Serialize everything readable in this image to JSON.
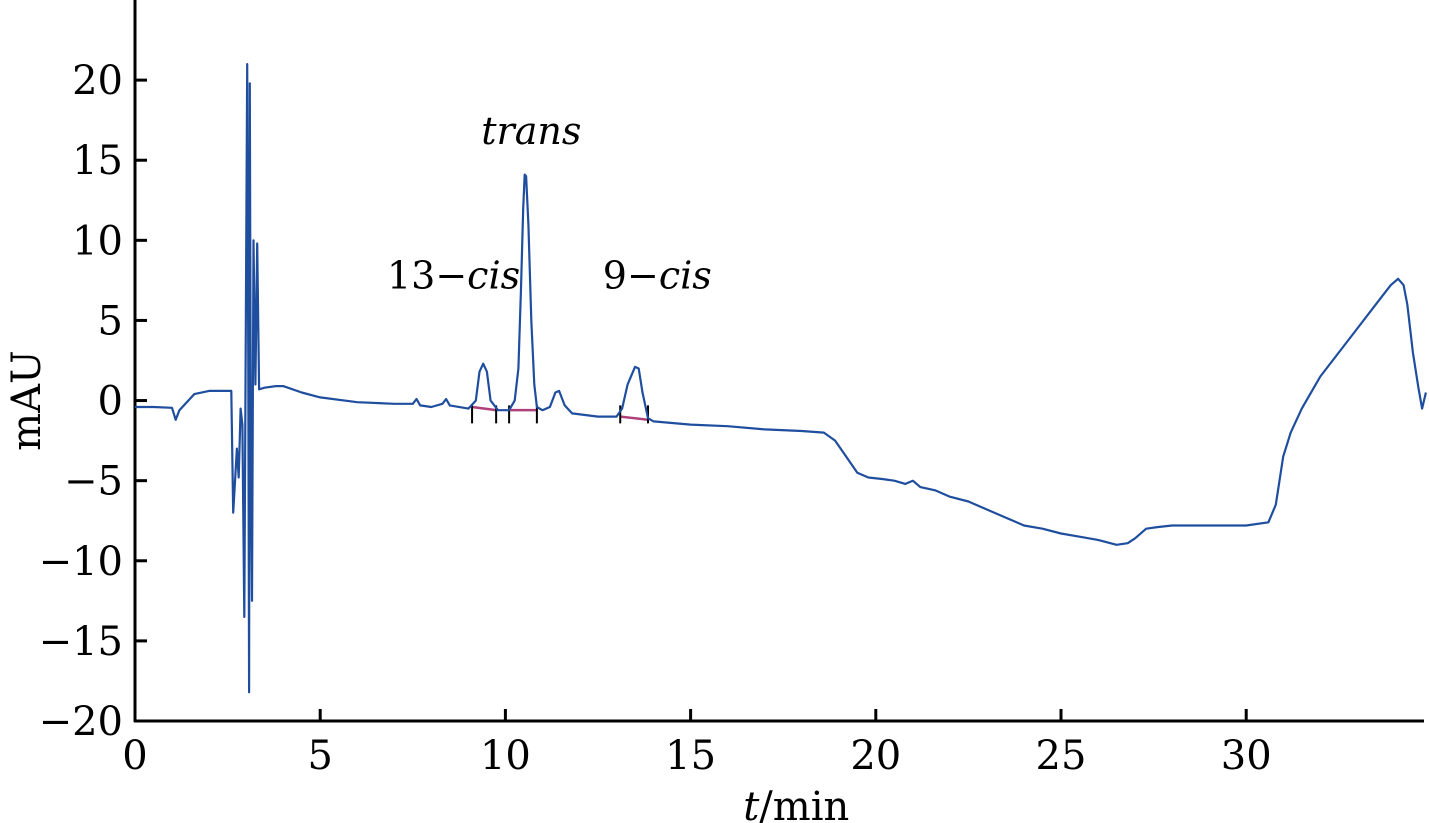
{
  "chart_data": {
    "type": "line",
    "title": "",
    "xlabel_italic": "t",
    "xlabel_rest": "/min",
    "ylabel": "mAU",
    "xlim": [
      0,
      34.8
    ],
    "ylim": [
      -20,
      25
    ],
    "xticks": [
      0,
      5,
      10,
      15,
      20,
      25,
      30
    ],
    "xtick_labels": [
      "0",
      "5",
      "10",
      "15",
      "20",
      "25",
      "30"
    ],
    "yticks": [
      -20,
      -15,
      -10,
      -5,
      0,
      5,
      10,
      15,
      20
    ],
    "ytick_labels": [
      "−20",
      "−15",
      "−10",
      "−5",
      "0",
      "5",
      "10",
      "15",
      "20"
    ],
    "grid": false,
    "line_color": "#1f4e9e",
    "baseline_color": "#b0407a",
    "series": [
      {
        "points": [
          [
            0,
            -0.4
          ],
          [
            0.5,
            -0.4
          ],
          [
            1.0,
            -0.45
          ],
          [
            1.1,
            -1.2
          ],
          [
            1.2,
            -0.6
          ],
          [
            1.6,
            0.4
          ],
          [
            2.0,
            0.6
          ],
          [
            2.6,
            0.6
          ],
          [
            2.65,
            -7.0
          ],
          [
            2.75,
            -3.0
          ],
          [
            2.8,
            -4.8
          ],
          [
            2.85,
            -0.5
          ],
          [
            2.9,
            -1.5
          ],
          [
            2.95,
            -13.5
          ],
          [
            3.0,
            8.0
          ],
          [
            3.03,
            21.0
          ],
          [
            3.06,
            2.0
          ],
          [
            3.08,
            -18.2
          ],
          [
            3.1,
            19.8
          ],
          [
            3.13,
            -5.0
          ],
          [
            3.16,
            -12.5
          ],
          [
            3.2,
            10.0
          ],
          [
            3.25,
            1.0
          ],
          [
            3.3,
            9.8
          ],
          [
            3.35,
            0.7
          ],
          [
            3.5,
            0.8
          ],
          [
            3.8,
            0.9
          ],
          [
            4.0,
            0.9
          ],
          [
            4.5,
            0.5
          ],
          [
            5.0,
            0.2
          ],
          [
            6.0,
            -0.1
          ],
          [
            7.0,
            -0.2
          ],
          [
            7.5,
            -0.2
          ],
          [
            7.6,
            0.1
          ],
          [
            7.7,
            -0.3
          ],
          [
            8.0,
            -0.4
          ],
          [
            8.3,
            -0.2
          ],
          [
            8.4,
            0.1
          ],
          [
            8.5,
            -0.3
          ],
          [
            9.0,
            -0.5
          ],
          [
            9.2,
            0.0
          ],
          [
            9.3,
            1.8
          ],
          [
            9.4,
            2.3
          ],
          [
            9.5,
            1.8
          ],
          [
            9.6,
            0.0
          ],
          [
            9.8,
            -0.6
          ],
          [
            10.1,
            -0.6
          ],
          [
            10.25,
            0.0
          ],
          [
            10.35,
            2.0
          ],
          [
            10.42,
            7.0
          ],
          [
            10.48,
            12.0
          ],
          [
            10.52,
            14.1
          ],
          [
            10.56,
            14.0
          ],
          [
            10.62,
            11.0
          ],
          [
            10.7,
            5.0
          ],
          [
            10.78,
            1.0
          ],
          [
            10.85,
            -0.4
          ],
          [
            11.0,
            -0.6
          ],
          [
            11.2,
            -0.4
          ],
          [
            11.35,
            0.5
          ],
          [
            11.45,
            0.6
          ],
          [
            11.6,
            -0.3
          ],
          [
            11.8,
            -0.8
          ],
          [
            12.5,
            -1.0
          ],
          [
            13.0,
            -1.0
          ],
          [
            13.15,
            -0.5
          ],
          [
            13.3,
            1.0
          ],
          [
            13.5,
            2.1
          ],
          [
            13.6,
            2.0
          ],
          [
            13.7,
            0.5
          ],
          [
            13.85,
            -1.1
          ],
          [
            14.0,
            -1.3
          ],
          [
            15.0,
            -1.5
          ],
          [
            16.0,
            -1.6
          ],
          [
            17.0,
            -1.8
          ],
          [
            18.0,
            -1.9
          ],
          [
            18.6,
            -2.0
          ],
          [
            18.9,
            -2.5
          ],
          [
            19.2,
            -3.5
          ],
          [
            19.5,
            -4.5
          ],
          [
            19.8,
            -4.8
          ],
          [
            20.2,
            -4.9
          ],
          [
            20.5,
            -5.0
          ],
          [
            20.8,
            -5.2
          ],
          [
            21.0,
            -5.0
          ],
          [
            21.2,
            -5.4
          ],
          [
            21.6,
            -5.6
          ],
          [
            22.0,
            -6.0
          ],
          [
            22.5,
            -6.3
          ],
          [
            23.0,
            -6.8
          ],
          [
            23.5,
            -7.3
          ],
          [
            24.0,
            -7.8
          ],
          [
            24.5,
            -8.0
          ],
          [
            25.0,
            -8.3
          ],
          [
            25.5,
            -8.5
          ],
          [
            26.0,
            -8.7
          ],
          [
            26.5,
            -9.0
          ],
          [
            26.8,
            -8.9
          ],
          [
            27.0,
            -8.6
          ],
          [
            27.3,
            -8.0
          ],
          [
            27.6,
            -7.9
          ],
          [
            28.0,
            -7.8
          ],
          [
            29.0,
            -7.8
          ],
          [
            30.0,
            -7.8
          ],
          [
            30.6,
            -7.6
          ],
          [
            30.8,
            -6.5
          ],
          [
            31.0,
            -3.5
          ],
          [
            31.2,
            -2.0
          ],
          [
            31.5,
            -0.5
          ],
          [
            32.0,
            1.5
          ],
          [
            32.5,
            3.0
          ],
          [
            33.0,
            4.5
          ],
          [
            33.5,
            6.0
          ],
          [
            33.9,
            7.2
          ],
          [
            34.1,
            7.6
          ],
          [
            34.25,
            7.2
          ],
          [
            34.35,
            6.0
          ],
          [
            34.5,
            3.0
          ],
          [
            34.65,
            0.8
          ],
          [
            34.75,
            -0.5
          ],
          [
            34.85,
            0.5
          ]
        ]
      }
    ],
    "integration_baselines": [
      {
        "x": [
          9.1,
          9.75
        ],
        "y": [
          -0.4,
          -0.6
        ]
      },
      {
        "x": [
          10.1,
          10.85
        ],
        "y": [
          -0.6,
          -0.6
        ]
      },
      {
        "x": [
          13.1,
          13.85
        ],
        "y": [
          -1.0,
          -1.2
        ]
      }
    ],
    "peak_markers": [
      9.1,
      9.75,
      10.1,
      10.85,
      13.1,
      13.85
    ],
    "annotations": [
      {
        "text_prefix": "13−",
        "text_italic": "cis",
        "x": 8.6,
        "y": 7.0
      },
      {
        "text_prefix": "",
        "text_italic": "trans",
        "x": 10.7,
        "y": 16.0
      },
      {
        "text_prefix": "9−",
        "text_italic": "cis",
        "x": 14.1,
        "y": 7.0
      }
    ]
  }
}
